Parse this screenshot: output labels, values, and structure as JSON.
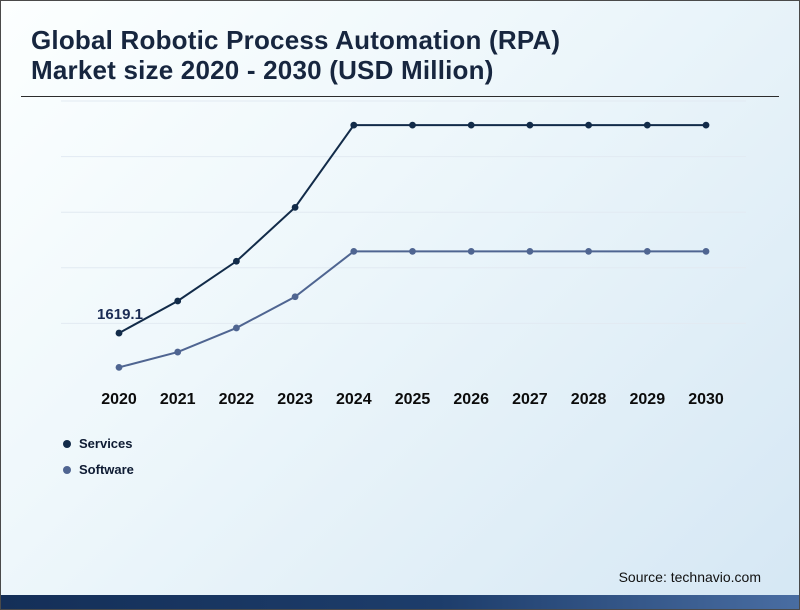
{
  "title": {
    "line1": "Global Robotic Process Automation (RPA)",
    "line2": "Market size 2020 - 2030 (USD Million)"
  },
  "source": "Source: technavio.com",
  "legend": [
    {
      "label": "Services",
      "color": "#122b49"
    },
    {
      "label": "Software",
      "color": "#4f6591"
    }
  ],
  "chart_data": {
    "type": "line",
    "title": "Global Robotic Process Automation (RPA) Market size 2020 - 2030 (USD Million)",
    "xlabel": "",
    "ylabel": "USD Million",
    "x": [
      2020,
      2021,
      2022,
      2023,
      2024,
      2025,
      2026,
      2027,
      2028,
      2029,
      2030
    ],
    "series": [
      {
        "name": "Services",
        "color": "#122b49",
        "values": [
          1619.1,
          2750,
          4150,
          6050,
          8950,
          8950,
          8950,
          8950,
          8950,
          8950,
          8950
        ]
      },
      {
        "name": "Software",
        "color": "#4f6591",
        "values": [
          410,
          950,
          1800,
          2900,
          4500,
          4500,
          4500,
          4500,
          4500,
          4500,
          4500
        ]
      }
    ],
    "annotations": [
      {
        "text": "1619.1",
        "series": "Services",
        "x": 2020
      }
    ],
    "ylim": [
      0,
      9800
    ],
    "gridlines": [
      1960,
      3920,
      5880,
      7840,
      9800
    ],
    "grid": true,
    "legend_position": "bottom-left"
  }
}
